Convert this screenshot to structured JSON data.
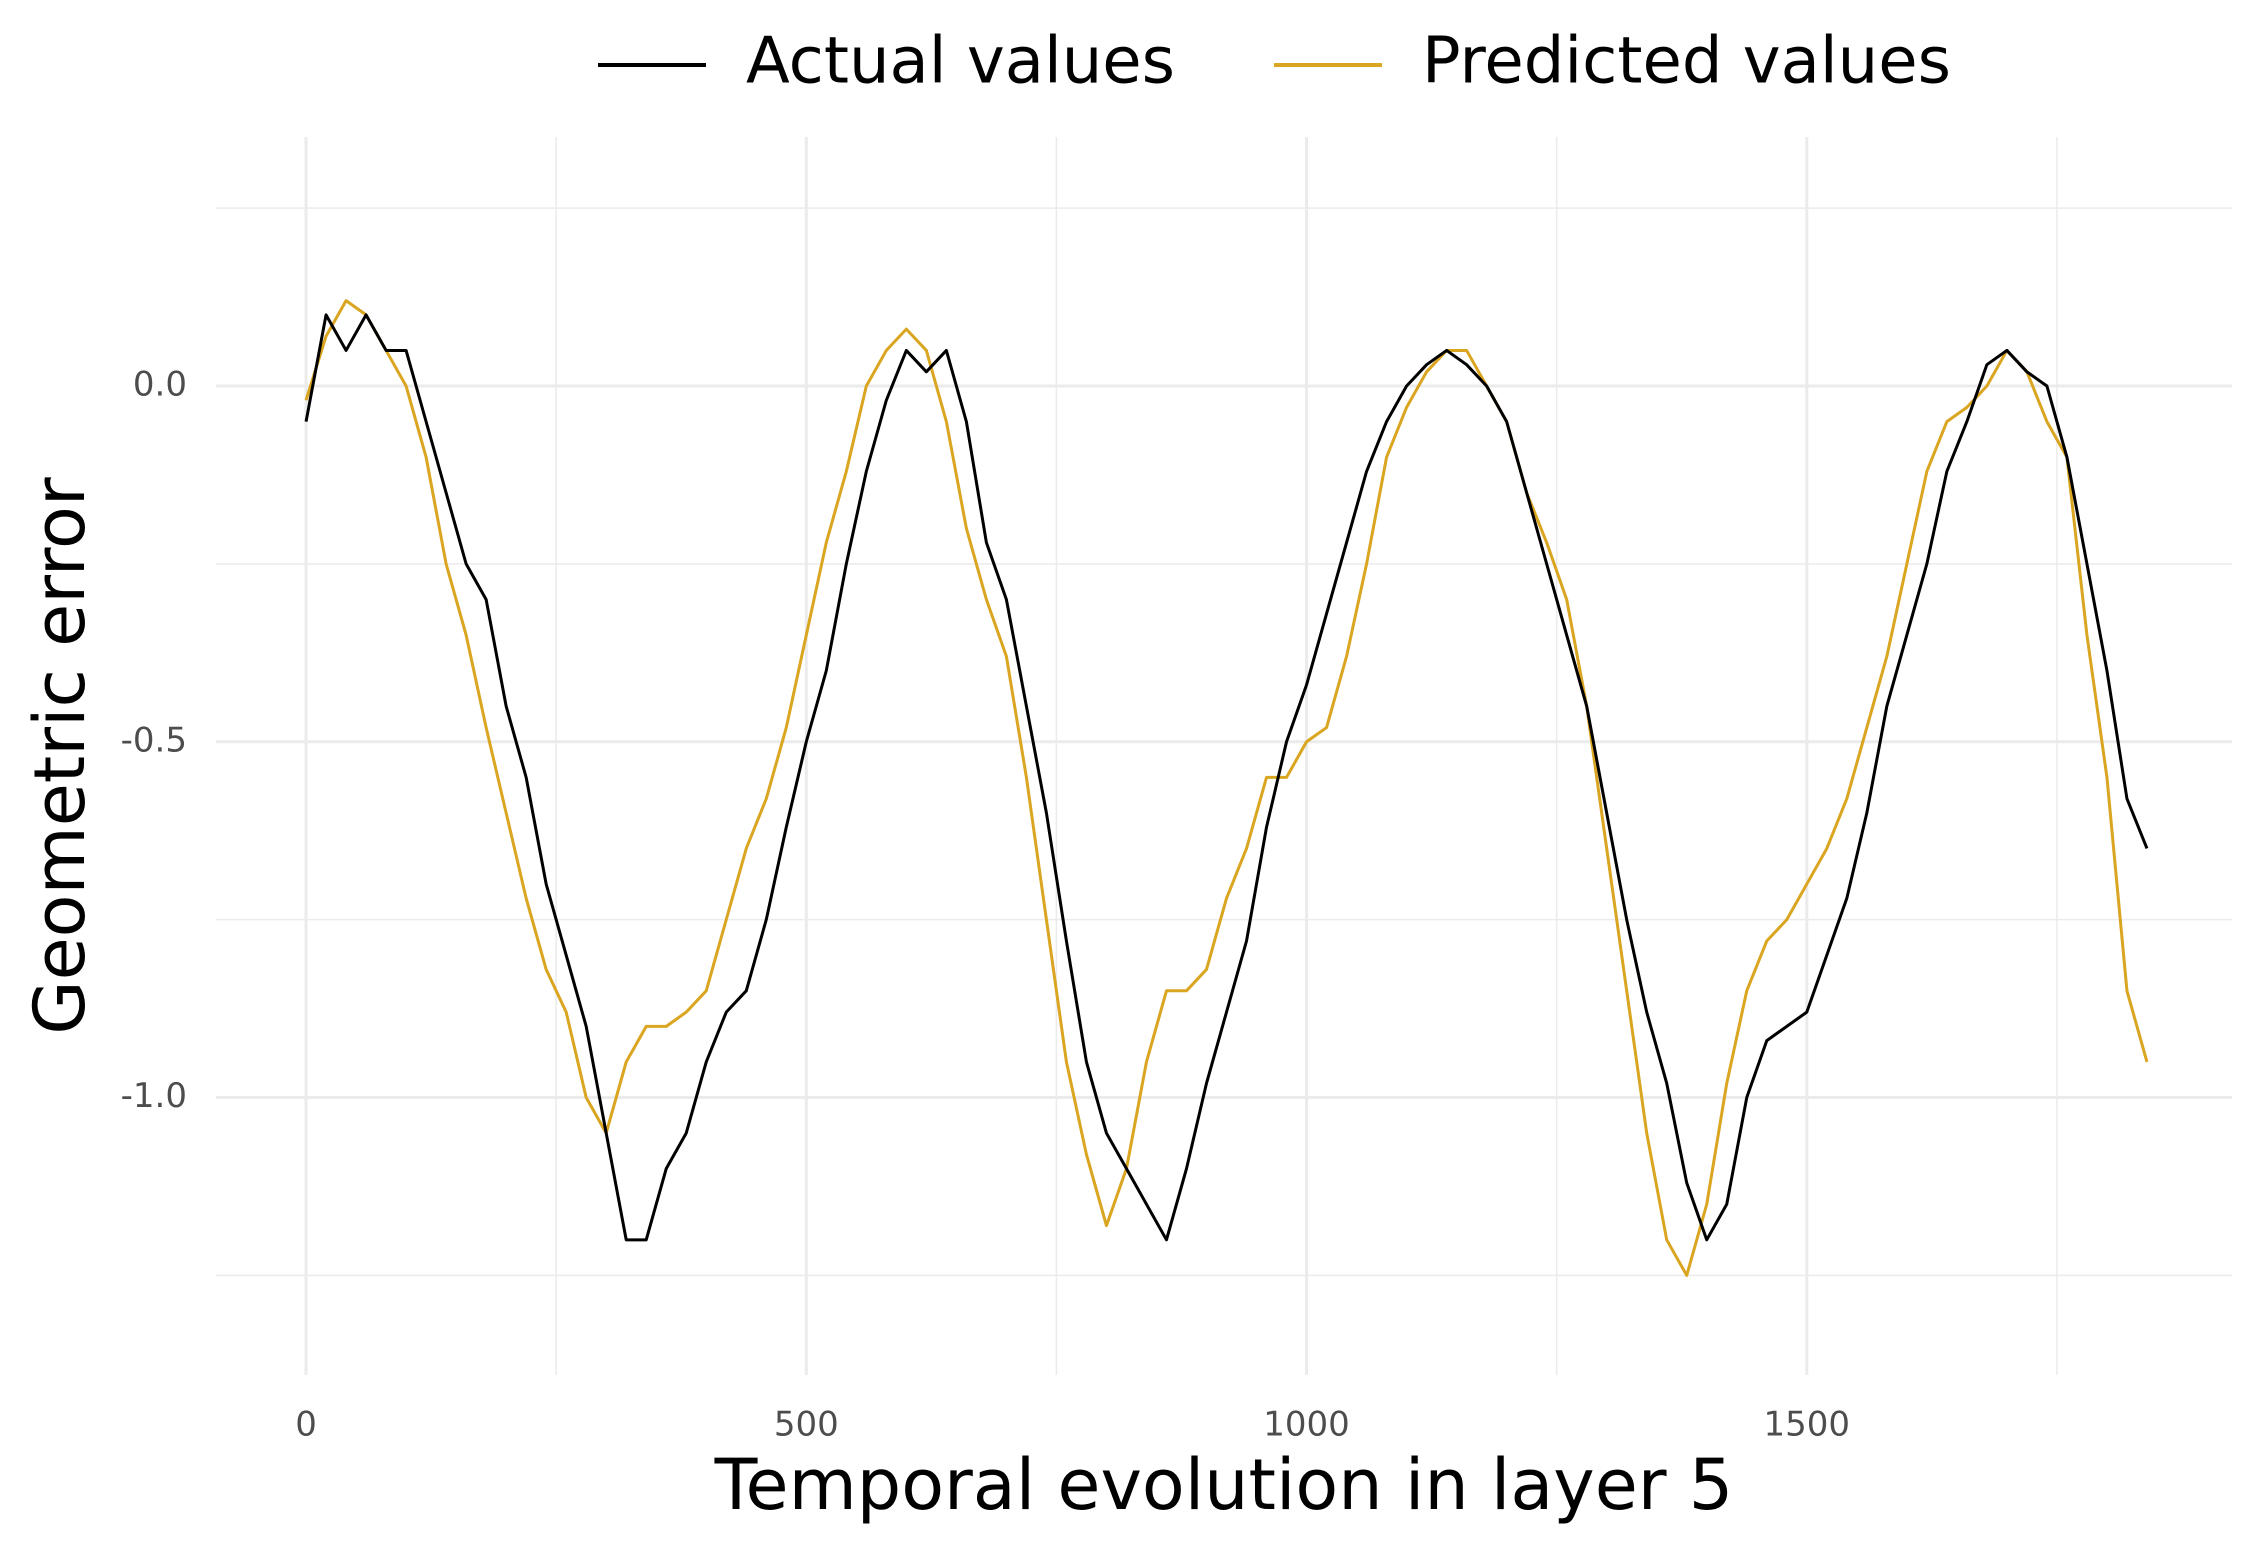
{
  "chart_data": {
    "type": "line",
    "xlabel": "Temporal evolution in layer 5",
    "ylabel": "Geometric error",
    "x": [
      0,
      20,
      40,
      60,
      80,
      100,
      120,
      140,
      160,
      180,
      200,
      220,
      240,
      260,
      280,
      300,
      320,
      340,
      360,
      380,
      400,
      420,
      440,
      460,
      480,
      500,
      520,
      540,
      560,
      580,
      600,
      620,
      640,
      660,
      680,
      700,
      720,
      740,
      760,
      780,
      800,
      820,
      840,
      860,
      880,
      900,
      920,
      940,
      960,
      980,
      1000,
      1020,
      1040,
      1060,
      1080,
      1100,
      1120,
      1140,
      1160,
      1180,
      1200,
      1220,
      1240,
      1260,
      1280,
      1300,
      1320,
      1340,
      1360,
      1380,
      1400,
      1420,
      1440,
      1460,
      1480,
      1500,
      1520,
      1540,
      1560,
      1580,
      1600,
      1620,
      1640,
      1660,
      1680,
      1700,
      1720,
      1740,
      1760,
      1780,
      1800,
      1820,
      1840
    ],
    "series": [
      {
        "name": "Actual values",
        "color": "#000000",
        "values": [
          -0.05,
          0.1,
          0.05,
          0.1,
          0.05,
          0.05,
          -0.05,
          -0.15,
          -0.25,
          -0.3,
          -0.45,
          -0.55,
          -0.7,
          -0.8,
          -0.9,
          -1.05,
          -1.2,
          -1.2,
          -1.1,
          -1.05,
          -0.95,
          -0.88,
          -0.85,
          -0.75,
          -0.62,
          -0.5,
          -0.4,
          -0.25,
          -0.12,
          -0.02,
          0.05,
          0.02,
          0.05,
          -0.05,
          -0.22,
          -0.3,
          -0.45,
          -0.6,
          -0.78,
          -0.95,
          -1.05,
          -1.1,
          -1.15,
          -1.2,
          -1.1,
          -0.98,
          -0.88,
          -0.78,
          -0.62,
          -0.5,
          -0.42,
          -0.32,
          -0.22,
          -0.12,
          -0.05,
          0.0,
          0.03,
          0.05,
          0.03,
          0.0,
          -0.05,
          -0.15,
          -0.25,
          -0.35,
          -0.45,
          -0.6,
          -0.75,
          -0.88,
          -0.98,
          -1.12,
          -1.2,
          -1.15,
          -1.0,
          -0.92,
          -0.9,
          -0.88,
          -0.8,
          -0.72,
          -0.6,
          -0.45,
          -0.35,
          -0.25,
          -0.12,
          -0.05,
          0.03,
          0.05,
          0.02,
          0.0,
          -0.1,
          -0.25,
          -0.4,
          -0.58,
          -0.65
        ]
      },
      {
        "name": "Predicted values",
        "color": "#DAA520",
        "values": [
          -0.02,
          0.07,
          0.12,
          0.1,
          0.05,
          0.0,
          -0.1,
          -0.25,
          -0.35,
          -0.48,
          -0.6,
          -0.72,
          -0.82,
          -0.88,
          -1.0,
          -1.05,
          -0.95,
          -0.9,
          -0.9,
          -0.88,
          -0.85,
          -0.75,
          -0.65,
          -0.58,
          -0.48,
          -0.35,
          -0.22,
          -0.12,
          0.0,
          0.05,
          0.08,
          0.05,
          -0.05,
          -0.2,
          -0.3,
          -0.38,
          -0.55,
          -0.75,
          -0.95,
          -1.08,
          -1.18,
          -1.1,
          -0.95,
          -0.85,
          -0.85,
          -0.82,
          -0.72,
          -0.65,
          -0.55,
          -0.55,
          -0.5,
          -0.48,
          -0.38,
          -0.25,
          -0.1,
          -0.03,
          0.02,
          0.05,
          0.05,
          0.0,
          -0.05,
          -0.15,
          -0.22,
          -0.3,
          -0.45,
          -0.65,
          -0.85,
          -1.05,
          -1.2,
          -1.25,
          -1.15,
          -0.98,
          -0.85,
          -0.78,
          -0.75,
          -0.7,
          -0.65,
          -0.58,
          -0.48,
          -0.38,
          -0.25,
          -0.12,
          -0.05,
          -0.03,
          0.0,
          0.05,
          0.02,
          -0.05,
          -0.1,
          -0.35,
          -0.55,
          -0.85,
          -0.95
        ]
      }
    ],
    "xlim": [
      -90,
      1925
    ],
    "ylim": [
      -1.39,
      0.35
    ],
    "xticks": [
      0,
      500,
      1000,
      1500
    ],
    "x_minor_grid": [
      250,
      750,
      1250,
      1750
    ],
    "yticks": [
      {
        "value": -1.0,
        "label": "-1.0"
      },
      {
        "value": -0.5,
        "label": "-0.5"
      },
      {
        "value": 0.0,
        "label": "0.0"
      }
    ],
    "y_minor_grid": [
      -1.25,
      -0.75,
      -0.25,
      0.25
    ],
    "grid": true,
    "legend": "top"
  }
}
